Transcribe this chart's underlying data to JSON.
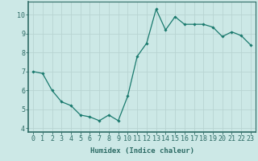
{
  "x": [
    0,
    1,
    2,
    3,
    4,
    5,
    6,
    7,
    8,
    9,
    10,
    11,
    12,
    13,
    14,
    15,
    16,
    17,
    18,
    19,
    20,
    21,
    22,
    23
  ],
  "y": [
    7.0,
    6.9,
    6.0,
    5.4,
    5.2,
    4.7,
    4.6,
    4.4,
    4.7,
    4.4,
    5.7,
    7.8,
    8.5,
    10.3,
    9.2,
    9.9,
    9.5,
    9.5,
    9.5,
    9.35,
    8.85,
    9.1,
    8.9,
    8.4
  ],
  "line_color": "#1a7a6e",
  "marker": "D",
  "marker_size": 1.8,
  "bg_color": "#cce8e6",
  "grid_color": "#b8d4d2",
  "xlabel": "Humidex (Indice chaleur)",
  "xlim": [
    -0.5,
    23.5
  ],
  "ylim": [
    3.8,
    10.7
  ],
  "xticks": [
    0,
    1,
    2,
    3,
    4,
    5,
    6,
    7,
    8,
    9,
    10,
    11,
    12,
    13,
    14,
    15,
    16,
    17,
    18,
    19,
    20,
    21,
    22,
    23
  ],
  "yticks": [
    4,
    5,
    6,
    7,
    8,
    9,
    10
  ],
  "xlabel_fontsize": 6.5,
  "tick_fontsize": 6.0,
  "spine_color": "#2d6b65"
}
